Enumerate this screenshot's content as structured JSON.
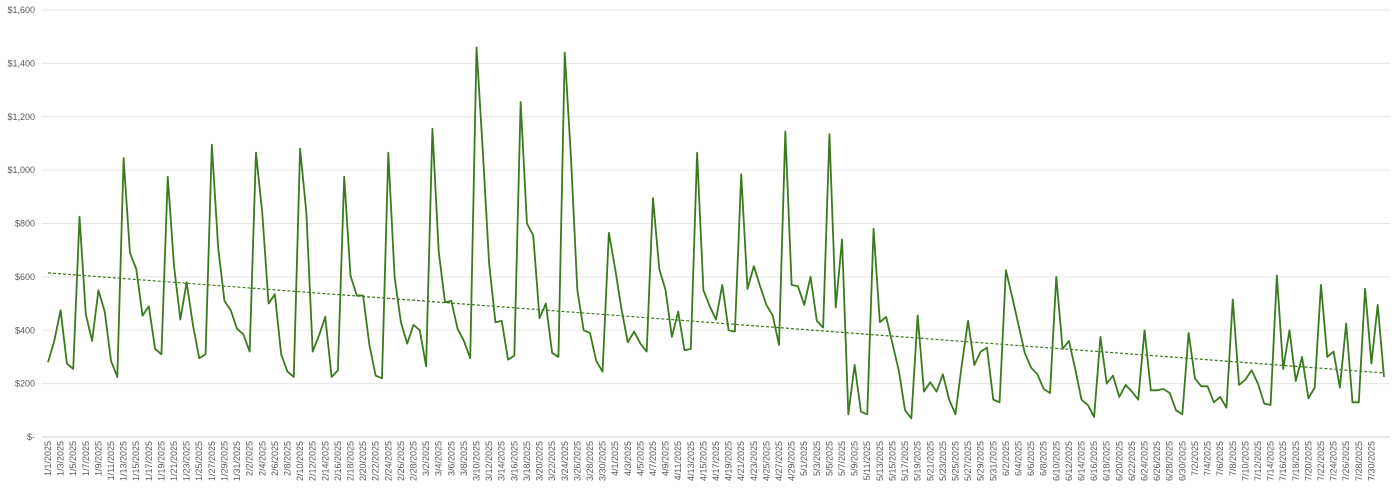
{
  "chart_data": {
    "type": "line",
    "title": "",
    "xlabel": "",
    "ylabel": "",
    "ylim": [
      0,
      1600
    ],
    "y_ticks": [
      {
        "value": 0,
        "label": "$-"
      },
      {
        "value": 200,
        "label": "$200"
      },
      {
        "value": 400,
        "label": "$400"
      },
      {
        "value": 600,
        "label": "$600"
      },
      {
        "value": 800,
        "label": "$800"
      },
      {
        "value": 1000,
        "label": "$1,000"
      },
      {
        "value": 1200,
        "label": "$1,200"
      },
      {
        "value": 1400,
        "label": "$1,400"
      },
      {
        "value": 1600,
        "label": "$1,600"
      }
    ],
    "x_tick_labels": [
      "1/1/2025",
      "1/3/2025",
      "1/5/2025",
      "1/7/2025",
      "1/9/2025",
      "1/11/2025",
      "1/13/2025",
      "1/15/2025",
      "1/17/2025",
      "1/19/2025",
      "1/21/2025",
      "1/23/2025",
      "1/25/2025",
      "1/27/2025",
      "1/29/2025",
      "1/31/2025",
      "2/2/2025",
      "2/4/2025",
      "2/6/2025",
      "2/8/2025",
      "2/10/2025",
      "2/12/2025",
      "2/14/2025",
      "2/16/2025",
      "2/18/2025",
      "2/20/2025",
      "2/22/2025",
      "2/24/2025",
      "2/26/2025",
      "2/28/2025",
      "3/2/2025",
      "3/4/2025",
      "3/6/2025",
      "3/8/2025",
      "3/10/2025",
      "3/12/2025",
      "3/14/2025",
      "3/16/2025",
      "3/18/2025",
      "3/20/2025",
      "3/22/2025",
      "3/24/2025",
      "3/26/2025",
      "3/28/2025",
      "3/30/2025",
      "4/1/2025",
      "4/3/2025",
      "4/5/2025",
      "4/7/2025",
      "4/9/2025",
      "4/11/2025",
      "4/13/2025",
      "4/15/2025",
      "4/17/2025",
      "4/19/2025",
      "4/21/2025",
      "4/23/2025",
      "4/25/2025",
      "4/27/2025",
      "4/29/2025",
      "5/1/2025",
      "5/3/2025",
      "5/5/2025",
      "5/7/2025",
      "5/9/2025",
      "5/11/2025",
      "5/13/2025",
      "5/15/2025",
      "5/17/2025",
      "5/19/2025",
      "5/21/2025",
      "5/23/2025",
      "5/25/2025",
      "5/27/2025",
      "5/29/2025",
      "5/31/2025",
      "6/2/2025",
      "6/4/2025",
      "6/6/2025",
      "6/8/2025",
      "6/10/2025",
      "6/12/2025",
      "6/14/2025",
      "6/16/2025",
      "6/18/2025",
      "6/20/2025",
      "6/22/2025",
      "6/24/2025",
      "6/26/2025",
      "6/28/2025",
      "6/30/2025",
      "7/2/2025",
      "7/4/2025",
      "7/6/2025",
      "7/8/2025",
      "7/10/2025",
      "7/12/2025",
      "7/14/2025",
      "7/16/2025",
      "7/18/2025",
      "7/20/2025",
      "7/22/2025",
      "7/24/2025",
      "7/26/2025",
      "7/28/2025",
      "7/30/2025"
    ],
    "x_range": [
      "1/1/2025",
      "7/31/2025"
    ],
    "grid": true,
    "legend": "none",
    "series": [
      {
        "line_color": "#3b7a1e",
        "x_start": "1/1/2025",
        "x_step": "1 day",
        "values": [
          280,
          360,
          475,
          275,
          255,
          825,
          460,
          360,
          550,
          470,
          285,
          225,
          1045,
          690,
          630,
          455,
          490,
          330,
          310,
          975,
          640,
          440,
          580,
          420,
          295,
          310,
          1095,
          710,
          510,
          475,
          405,
          385,
          320,
          1065,
          840,
          500,
          535,
          310,
          245,
          225,
          1080,
          840,
          320,
          380,
          450,
          225,
          250,
          975,
          605,
          530,
          530,
          345,
          230,
          220,
          1065,
          600,
          430,
          350,
          420,
          400,
          265,
          1155,
          695,
          505,
          510,
          405,
          360,
          295,
          1460,
          1070,
          650,
          430,
          435,
          290,
          305,
          1255,
          800,
          755,
          445,
          500,
          315,
          300,
          1440,
          1040,
          550,
          400,
          390,
          285,
          245,
          765,
          630,
          480,
          355,
          395,
          350,
          320,
          895,
          630,
          550,
          375,
          470,
          325,
          330,
          1065,
          550,
          490,
          440,
          570,
          400,
          395,
          985,
          555,
          640,
          565,
          495,
          455,
          345,
          1145,
          570,
          565,
          495,
          600,
          435,
          410,
          1135,
          485,
          740,
          85,
          270,
          95,
          85,
          780,
          430,
          450,
          350,
          250,
          100,
          70,
          455,
          170,
          205,
          170,
          235,
          140,
          85,
          270,
          435,
          270,
          320,
          335,
          140,
          130,
          625,
          525,
          420,
          315,
          260,
          235,
          180,
          165,
          600,
          330,
          360,
          255,
          140,
          120,
          75,
          375,
          200,
          230,
          150,
          195,
          170,
          140,
          400,
          175,
          175,
          180,
          165,
          100,
          85,
          390,
          220,
          190,
          190,
          130,
          150,
          110,
          515,
          195,
          215,
          250,
          200,
          125,
          120,
          605,
          255,
          400,
          210,
          300,
          145,
          185,
          570,
          300,
          320,
          185,
          425,
          130,
          130,
          555,
          275,
          495,
          225
        ],
        "trendline": {
          "style": "dotted-linear",
          "color": "#3b7a1e",
          "start_value": 615,
          "end_value": 240
        }
      }
    ]
  }
}
